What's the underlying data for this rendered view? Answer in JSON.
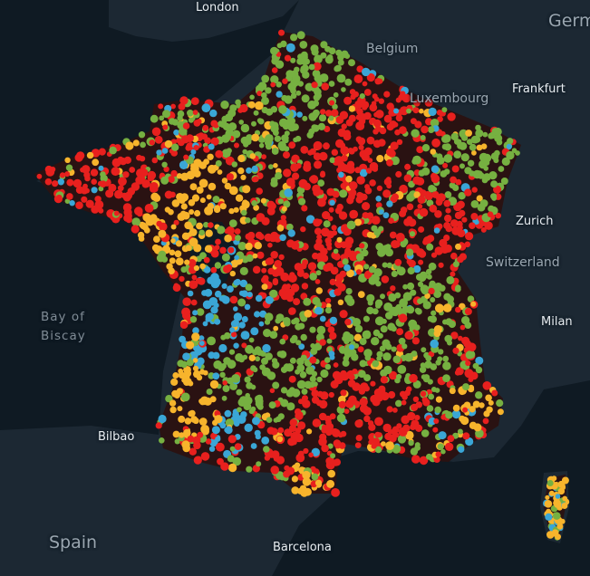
{
  "map": {
    "labels": {
      "london": "London",
      "germany": "Germ",
      "belgium": "Belgium",
      "luxembourg": "Luxembourg",
      "frankfurt": "Frankfurt",
      "zurich": "Zurich",
      "switzerland": "Switzerland",
      "milan": "Milan",
      "bay_of_biscay_line1": "Bay of",
      "bay_of_biscay_line2": "Biscay",
      "bilbao": "Bilbao",
      "spain": "Spain",
      "barcelona": "Barcelona"
    },
    "colors": {
      "background_water": "#0f1a23",
      "land": "#1c2833",
      "point_red": "#e8201e",
      "point_green": "#76b041",
      "point_yellow": "#f7b42c",
      "point_blue": "#3aa6d6"
    }
  }
}
